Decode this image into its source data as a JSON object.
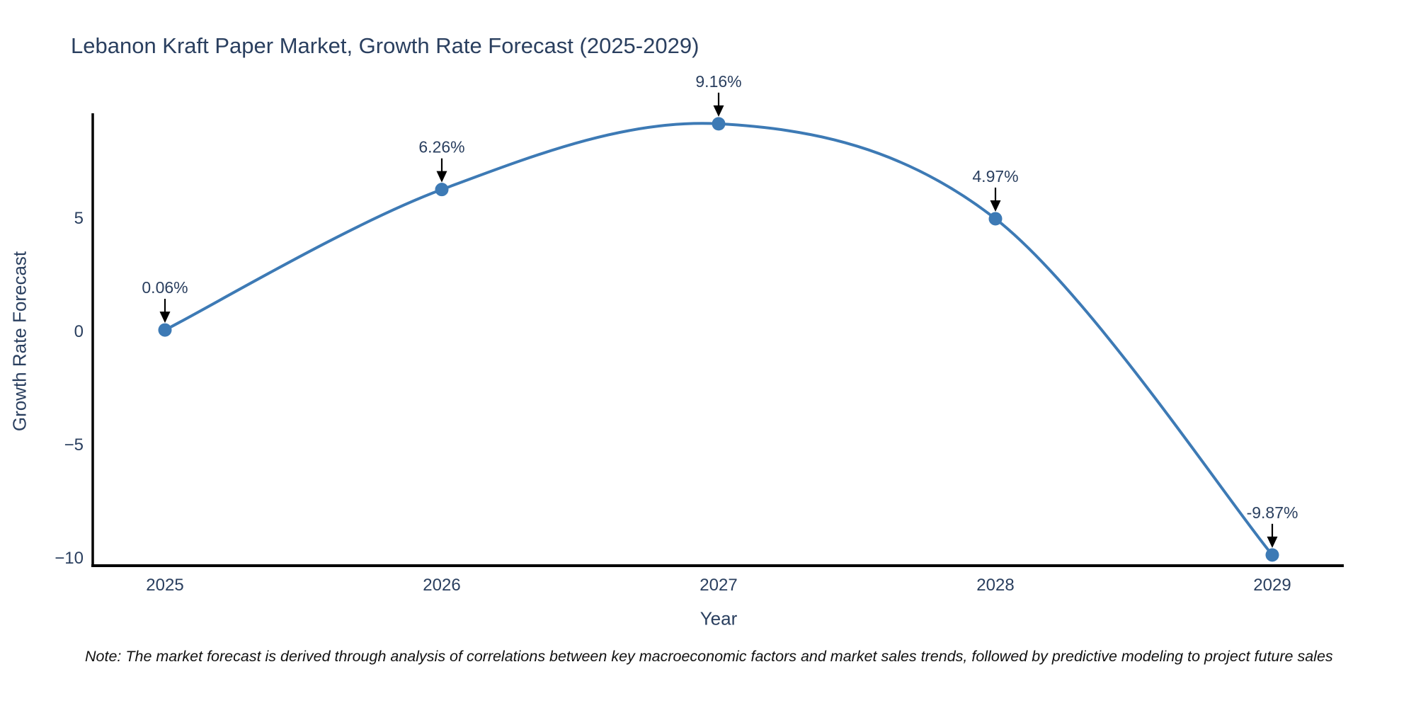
{
  "chart_data": {
    "type": "line",
    "title": "Lebanon Kraft Paper Market, Growth Rate Forecast (2025-2029)",
    "xlabel": "Year",
    "ylabel": "Growth Rate Forecast",
    "x": [
      2025,
      2026,
      2027,
      2028,
      2029
    ],
    "series": [
      {
        "name": "Growth Rate Forecast",
        "values": [
          0.06,
          6.26,
          9.16,
          4.97,
          -9.87
        ],
        "point_labels": [
          "0.06%",
          "6.26%",
          "9.16%",
          "4.97%",
          "-9.87%"
        ]
      }
    ],
    "xtick_labels": [
      "2025",
      "2026",
      "2027",
      "2028",
      "2029"
    ],
    "yticks": [
      5,
      0,
      -5,
      -10
    ],
    "ytick_labels": [
      "5",
      "0",
      "−5",
      "−10"
    ],
    "ylim": [
      -10.4,
      9.7
    ],
    "line_shape": "spline",
    "grid": false,
    "legend_position": "none",
    "colors": {
      "line": "#3d7ab5",
      "marker": "#3d7ab5",
      "axis_line": "#000000",
      "text": "#2a3f5f",
      "annotation_text": "#2a3f5f",
      "annotation_arrow": "#000000",
      "note_text": "#111111",
      "background": "#ffffff"
    },
    "note": "Note: The market forecast is derived through analysis of correlations between key macroeconomic factors and market sales trends, followed by predictive modeling to project future sales"
  }
}
